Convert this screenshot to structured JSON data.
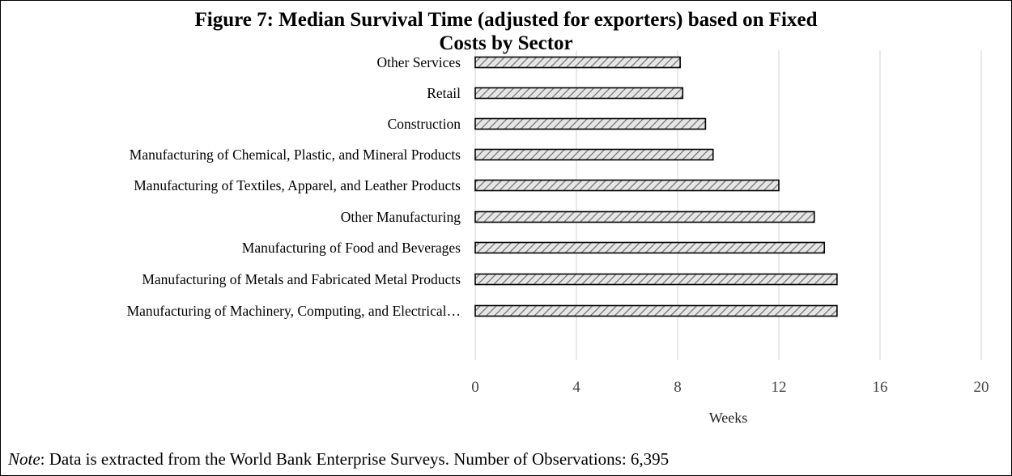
{
  "title_line1": "Figure 7: Median Survival Time (adjusted for exporters) based on Fixed",
  "title_line2": "Costs by Sector",
  "note": {
    "label": "Note",
    "text": ": Data is extracted from the World Bank Enterprise Surveys. Number of Observations: 6,395"
  },
  "chart_data": {
    "type": "bar",
    "orientation": "horizontal",
    "title": "Figure 7: Median Survival Time (adjusted for exporters) based on Fixed Costs by Sector",
    "categories": [
      "Other Services",
      "Retail",
      "Construction",
      "Manufacturing of Chemical, Plastic, and Mineral Products",
      "Manufacturing of Textiles, Apparel, and Leather Products",
      "Other Manufacturing",
      "Manufacturing of Food and Beverages",
      "Manufacturing of Metals and Fabricated Metal Products",
      "Manufacturing of Machinery, Computing, and Electrical…"
    ],
    "values": [
      8.1,
      8.2,
      9.1,
      9.4,
      12.0,
      13.4,
      13.8,
      14.3,
      14.3
    ],
    "xlabel": "Weeks",
    "ylabel": "",
    "xlim": [
      0,
      20
    ],
    "xticks": [
      0,
      4,
      8,
      12,
      16,
      20
    ],
    "grid": true,
    "legend": "none",
    "bar_fill": "#d0d0d0",
    "bar_edge": "#000000"
  }
}
